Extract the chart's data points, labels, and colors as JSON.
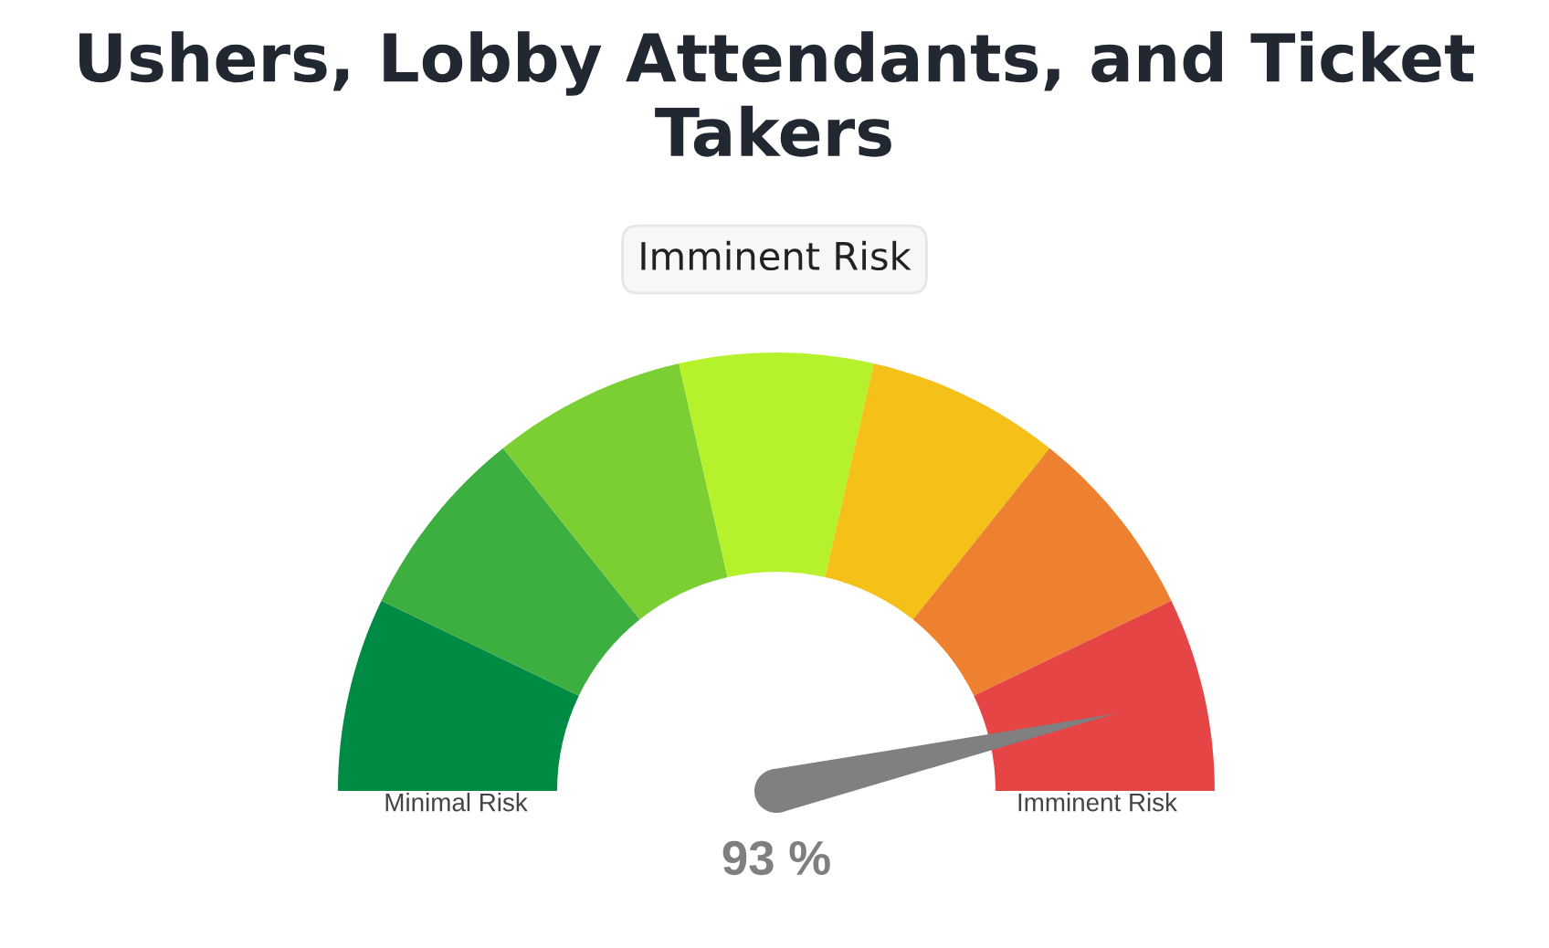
{
  "chart_data": {
    "type": "donut",
    "title": "Ushers, Lobby Attendants, and Ticket Takers",
    "subtitle": "Imminent Risk",
    "categories": [
      "Minimal Risk",
      null,
      null,
      null,
      null,
      null,
      "Imminent Risk"
    ],
    "values": [
      14.29,
      14.29,
      14.28,
      14.28,
      14.28,
      14.29,
      14.29
    ],
    "colors": [
      "#008b45",
      "#3dae40",
      "#7bcf33",
      "#b5f22c",
      "#f5c018",
      "#ee8130",
      "#e54545"
    ],
    "needle": "Imminent Risk",
    "annotations": [
      "93 %"
    ]
  }
}
